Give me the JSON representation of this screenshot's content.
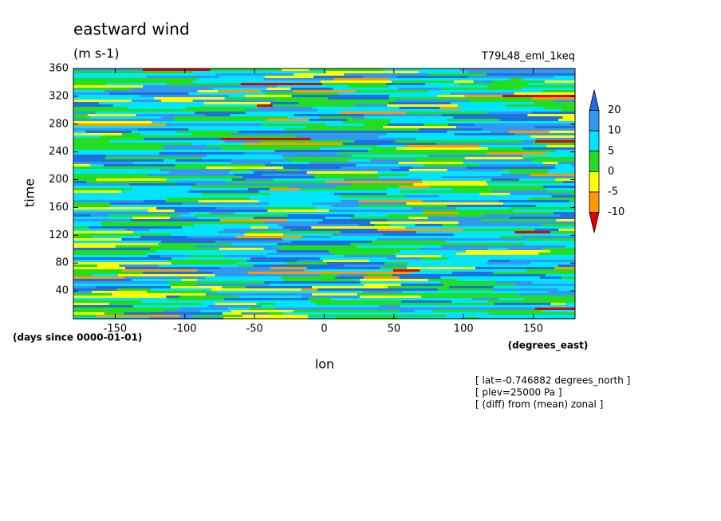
{
  "chart_data": {
    "type": "contour",
    "title": "eastward wind",
    "units": "(m s-1)",
    "subtitle": "T79L48_eml_1keq",
    "xlabel": "lon",
    "ylabel": "time",
    "x_units": "(degrees_east)",
    "y_units": "(days since 0000-01-01)",
    "xlim": [
      -180,
      180
    ],
    "xticks": [
      -150,
      -100,
      -50,
      0,
      50,
      100,
      150
    ],
    "ylim": [
      0,
      360
    ],
    "yticks": [
      40,
      80,
      120,
      160,
      200,
      240,
      280,
      320,
      360
    ],
    "colorbar": {
      "levels": [
        -10,
        -5,
        0,
        5,
        10,
        20
      ],
      "colors": [
        "#1f6fe0",
        "#3399f0",
        "#00e5ff",
        "#22dd22",
        "#ffff00",
        "#ff9900",
        "#e60000"
      ]
    },
    "annotations": [
      "[ lat=-0.746882 degrees_north ]",
      "[ plev=25000 Pa ]",
      "[ (diff) from (mean) zonal ]"
    ]
  }
}
